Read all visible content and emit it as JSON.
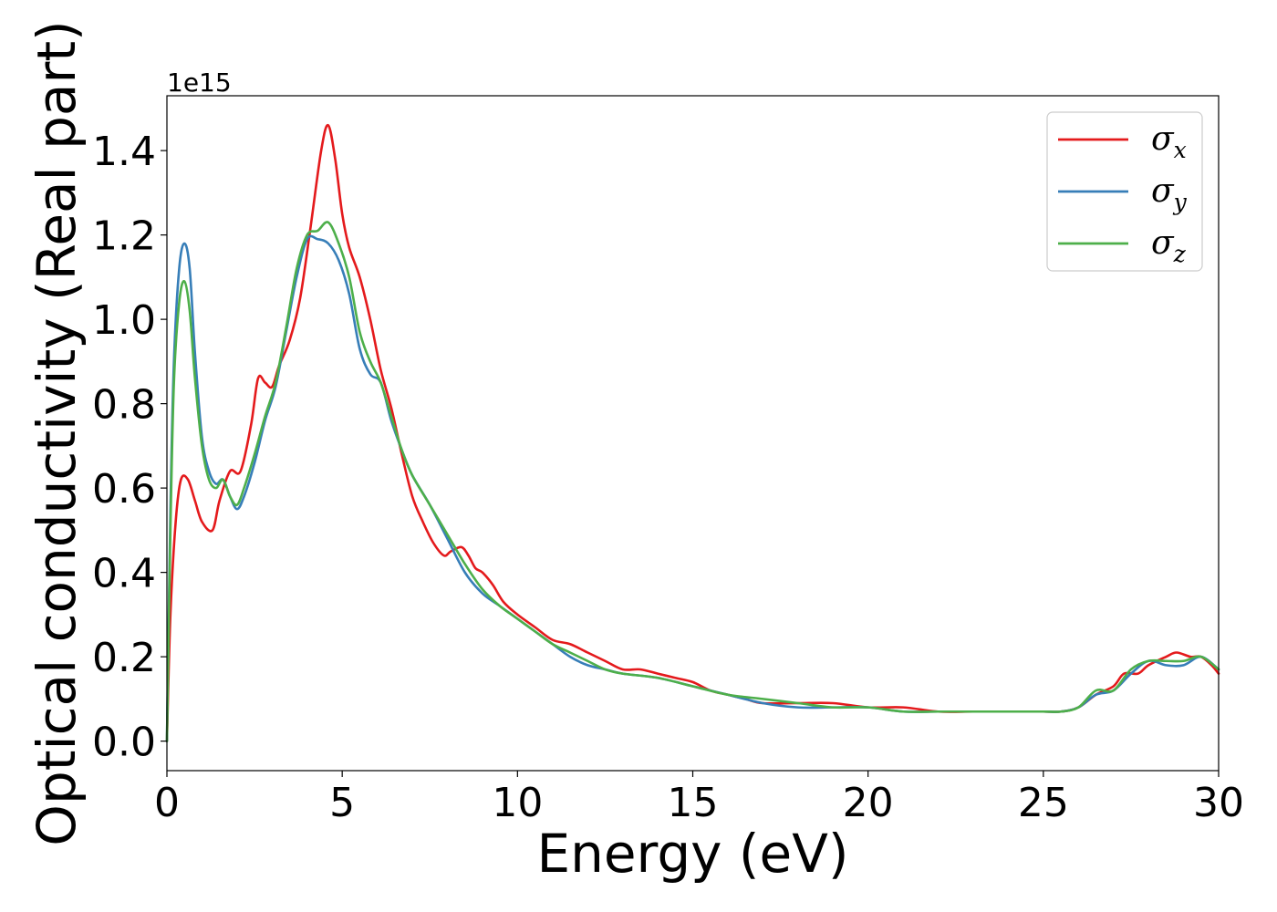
{
  "chart_data": {
    "type": "line",
    "xlabel": "Energy (eV)",
    "ylabel": "Optical conductivity (Real part)",
    "y_offset_text": "1e15",
    "xlim": [
      0,
      30
    ],
    "ylim": [
      -0.07,
      1.53
    ],
    "xticks": [
      0,
      5,
      10,
      15,
      20,
      25,
      30
    ],
    "xtick_labels": [
      "0",
      "5",
      "10",
      "15",
      "20",
      "25",
      "30"
    ],
    "yticks": [
      0.0,
      0.2,
      0.4,
      0.6,
      0.8,
      1.0,
      1.2,
      1.4
    ],
    "ytick_labels": [
      "0.0",
      "0.2",
      "0.4",
      "0.6",
      "0.8",
      "1.0",
      "1.2",
      "1.4"
    ],
    "grid": false,
    "legend_position": "top-right",
    "series": [
      {
        "name": "σx",
        "sym": "σ",
        "sub": "x",
        "color": "#e41a1c",
        "x": [
          0,
          0.1,
          0.25,
          0.4,
          0.6,
          0.8,
          1.0,
          1.3,
          1.5,
          1.8,
          2.1,
          2.4,
          2.6,
          2.8,
          3.0,
          3.2,
          3.5,
          3.8,
          4.1,
          4.4,
          4.6,
          4.8,
          5.0,
          5.2,
          5.5,
          5.8,
          6.1,
          6.4,
          6.7,
          7.0,
          7.3,
          7.6,
          7.9,
          8.1,
          8.4,
          8.6,
          8.8,
          9.0,
          9.3,
          9.6,
          10.0,
          10.5,
          11.0,
          11.5,
          12.0,
          12.5,
          13.0,
          13.5,
          14.0,
          14.5,
          15.0,
          15.5,
          16.0,
          16.5,
          17.0,
          18.0,
          19.0,
          20.0,
          21.0,
          22.0,
          23.0,
          24.0,
          25.0,
          25.5,
          26.0,
          26.5,
          27.0,
          27.3,
          27.7,
          28.0,
          28.5,
          28.8,
          29.2,
          29.5,
          29.8,
          30.0
        ],
        "y": [
          0.0,
          0.3,
          0.52,
          0.62,
          0.62,
          0.57,
          0.52,
          0.5,
          0.57,
          0.64,
          0.64,
          0.75,
          0.86,
          0.85,
          0.84,
          0.89,
          0.95,
          1.05,
          1.22,
          1.4,
          1.46,
          1.38,
          1.25,
          1.17,
          1.1,
          1.0,
          0.88,
          0.79,
          0.68,
          0.58,
          0.52,
          0.47,
          0.44,
          0.45,
          0.46,
          0.44,
          0.41,
          0.4,
          0.37,
          0.33,
          0.3,
          0.27,
          0.24,
          0.23,
          0.21,
          0.19,
          0.17,
          0.17,
          0.16,
          0.15,
          0.14,
          0.12,
          0.11,
          0.1,
          0.09,
          0.09,
          0.09,
          0.08,
          0.08,
          0.07,
          0.07,
          0.07,
          0.07,
          0.07,
          0.08,
          0.11,
          0.13,
          0.16,
          0.16,
          0.18,
          0.2,
          0.21,
          0.2,
          0.2,
          0.18,
          0.16
        ]
      },
      {
        "name": "σy",
        "sym": "σ",
        "sub": "y",
        "color": "#377eb8",
        "x": [
          0,
          0.1,
          0.2,
          0.35,
          0.5,
          0.65,
          0.8,
          1.0,
          1.2,
          1.4,
          1.6,
          1.8,
          2.0,
          2.2,
          2.5,
          2.8,
          3.1,
          3.4,
          3.7,
          4.0,
          4.3,
          4.6,
          4.9,
          5.2,
          5.5,
          5.8,
          6.1,
          6.4,
          6.7,
          7.0,
          7.5,
          8.0,
          8.5,
          9.0,
          9.5,
          10.0,
          10.5,
          11.0,
          11.5,
          12.0,
          12.5,
          13.0,
          14.0,
          15.0,
          16.0,
          17.0,
          18.0,
          19.0,
          20.0,
          21.0,
          22.0,
          23.0,
          24.0,
          25.0,
          25.5,
          26.0,
          26.5,
          27.0,
          27.5,
          28.0,
          28.5,
          29.0,
          29.5,
          30.0
        ],
        "y": [
          0.0,
          0.55,
          0.9,
          1.12,
          1.18,
          1.12,
          0.92,
          0.72,
          0.64,
          0.61,
          0.62,
          0.58,
          0.55,
          0.58,
          0.66,
          0.76,
          0.84,
          0.97,
          1.1,
          1.19,
          1.19,
          1.18,
          1.14,
          1.06,
          0.93,
          0.87,
          0.85,
          0.76,
          0.69,
          0.63,
          0.56,
          0.48,
          0.4,
          0.35,
          0.32,
          0.29,
          0.26,
          0.23,
          0.2,
          0.18,
          0.17,
          0.16,
          0.15,
          0.13,
          0.11,
          0.09,
          0.08,
          0.08,
          0.08,
          0.07,
          0.07,
          0.07,
          0.07,
          0.07,
          0.07,
          0.08,
          0.11,
          0.12,
          0.16,
          0.19,
          0.18,
          0.18,
          0.2,
          0.17
        ]
      },
      {
        "name": "σz",
        "sym": "σ",
        "sub": "z",
        "color": "#4daf4a",
        "x": [
          0,
          0.1,
          0.2,
          0.35,
          0.5,
          0.65,
          0.8,
          1.0,
          1.2,
          1.4,
          1.6,
          1.8,
          2.0,
          2.2,
          2.5,
          2.8,
          3.1,
          3.4,
          3.7,
          4.0,
          4.3,
          4.6,
          4.9,
          5.2,
          5.5,
          5.8,
          6.1,
          6.4,
          6.7,
          7.0,
          7.5,
          8.0,
          8.5,
          9.0,
          9.5,
          10.0,
          10.5,
          11.0,
          11.5,
          12.0,
          12.5,
          13.0,
          14.0,
          15.0,
          16.0,
          17.0,
          18.0,
          19.0,
          20.0,
          21.0,
          22.0,
          23.0,
          24.0,
          25.0,
          25.5,
          26.0,
          26.5,
          27.0,
          27.5,
          28.0,
          28.5,
          29.0,
          29.5,
          30.0
        ],
        "y": [
          0.0,
          0.5,
          0.85,
          1.04,
          1.09,
          1.02,
          0.86,
          0.7,
          0.62,
          0.6,
          0.62,
          0.58,
          0.56,
          0.6,
          0.68,
          0.77,
          0.85,
          0.98,
          1.12,
          1.2,
          1.21,
          1.23,
          1.18,
          1.1,
          0.97,
          0.9,
          0.85,
          0.77,
          0.69,
          0.63,
          0.56,
          0.49,
          0.42,
          0.36,
          0.32,
          0.29,
          0.26,
          0.23,
          0.21,
          0.19,
          0.17,
          0.16,
          0.15,
          0.13,
          0.11,
          0.1,
          0.09,
          0.08,
          0.08,
          0.07,
          0.07,
          0.07,
          0.07,
          0.07,
          0.07,
          0.08,
          0.12,
          0.12,
          0.17,
          0.19,
          0.19,
          0.19,
          0.2,
          0.17
        ]
      }
    ]
  }
}
